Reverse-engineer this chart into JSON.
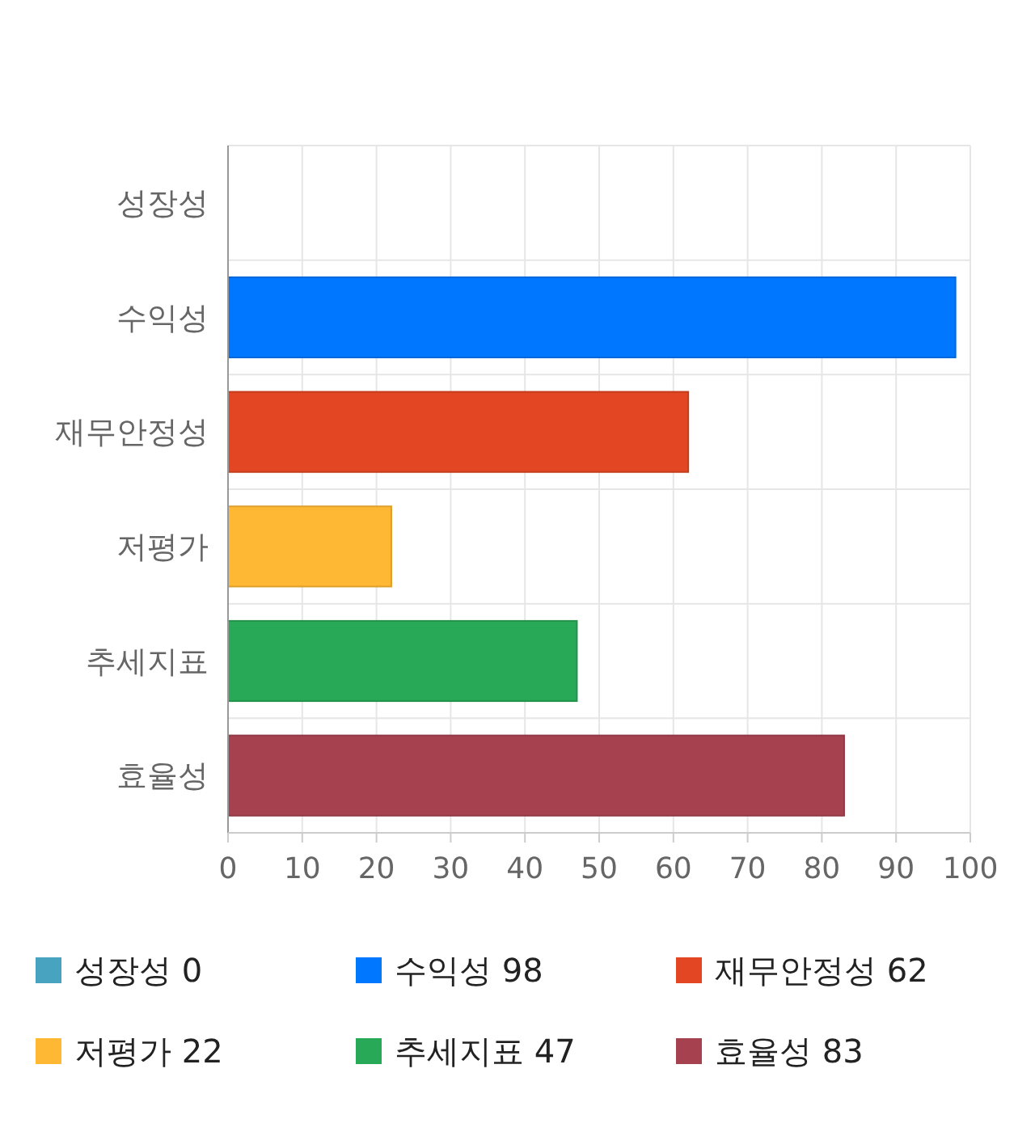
{
  "chart_data": {
    "type": "bar",
    "orientation": "horizontal",
    "stacked": true,
    "categories": [
      "성장성",
      "수익성",
      "재무안정성",
      "저평가",
      "추세지표",
      "효율성"
    ],
    "series": [
      {
        "name": "성장성 0",
        "color": "#47a3bf",
        "values": [
          0,
          null,
          null,
          null,
          null,
          null
        ]
      },
      {
        "name": "수익성 98",
        "color": "#0077ff",
        "values": [
          null,
          98,
          null,
          null,
          null,
          null
        ]
      },
      {
        "name": "재무안정성 62",
        "color": "#e24622",
        "values": [
          null,
          null,
          62,
          null,
          null,
          null
        ]
      },
      {
        "name": "저평가 22",
        "color": "#ffb833",
        "values": [
          null,
          null,
          null,
          22,
          null,
          null
        ]
      },
      {
        "name": "추세지표 47",
        "color": "#28a957",
        "values": [
          null,
          null,
          null,
          null,
          47,
          null
        ]
      },
      {
        "name": "효율성 83",
        "color": "#a6414f",
        "values": [
          null,
          null,
          null,
          null,
          null,
          83
        ]
      }
    ],
    "xlim": [
      0,
      100
    ],
    "xticks": [
      0,
      10,
      20,
      30,
      40,
      50,
      60,
      70,
      80,
      90,
      100
    ],
    "grid": true,
    "legend": "bottom"
  }
}
